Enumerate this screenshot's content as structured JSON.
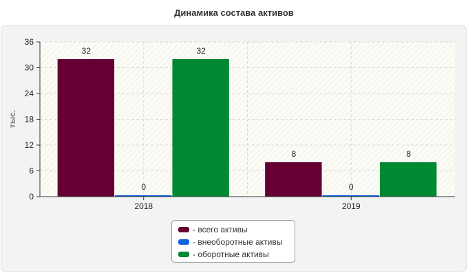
{
  "chart_data": {
    "type": "bar",
    "title": "Динамика состава активов",
    "ylabel": "тыс.",
    "xlabel": "",
    "categories": [
      "2018",
      "2019"
    ],
    "ylim": [
      0,
      36
    ],
    "yticks": [
      0,
      6,
      12,
      18,
      24,
      30,
      36
    ],
    "grid": true,
    "legend_position": "bottom",
    "series": [
      {
        "name": "- всего активы",
        "color": "#660033",
        "values": [
          32,
          8
        ]
      },
      {
        "name": "- внеоборотные активы",
        "color": "#1166dd",
        "values": [
          0,
          0
        ]
      },
      {
        "name": "- оборотные активы",
        "color": "#008833",
        "values": [
          32,
          8
        ]
      }
    ]
  }
}
